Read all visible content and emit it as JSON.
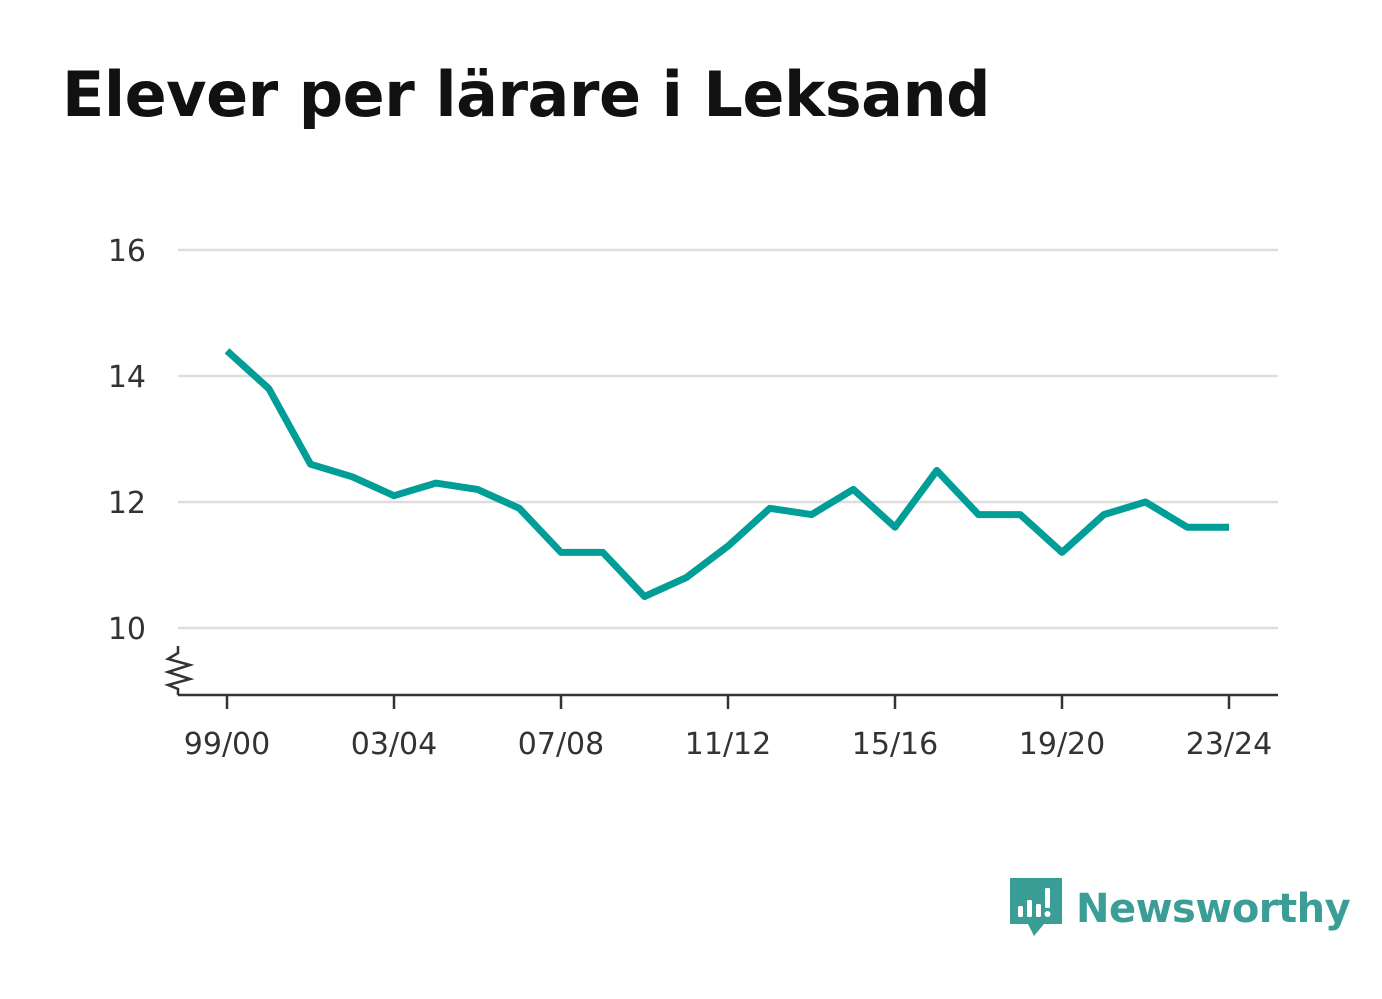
{
  "chart_data": {
    "type": "line",
    "title": "Elever per lärare i Leksand",
    "xlabel": "",
    "ylabel": "",
    "x": [
      "99/00",
      "00/01",
      "01/02",
      "02/03",
      "03/04",
      "04/05",
      "05/06",
      "06/07",
      "07/08",
      "08/09",
      "09/10",
      "10/11",
      "11/12",
      "12/13",
      "13/14",
      "14/15",
      "15/16",
      "16/17",
      "17/18",
      "18/19",
      "19/20",
      "20/21",
      "21/22",
      "22/23",
      "23/24"
    ],
    "x_tick_labels": [
      "99/00",
      "03/04",
      "07/08",
      "11/12",
      "15/16",
      "19/20",
      "23/24"
    ],
    "series": [
      {
        "values": [
          14.4,
          13.8,
          12.6,
          12.4,
          12.1,
          12.3,
          12.2,
          11.9,
          11.2,
          11.2,
          10.5,
          10.8,
          11.3,
          11.9,
          11.8,
          12.2,
          11.6,
          12.5,
          11.8,
          11.8,
          11.2,
          11.8,
          12.0,
          11.6,
          11.6
        ],
        "color": "#009e96"
      }
    ],
    "ylim": [
      9,
      16
    ],
    "y_ticks": [
      10,
      12,
      14,
      16
    ],
    "y_axis_break": true,
    "grid": true,
    "legend": "none"
  },
  "brand": {
    "name": "Newsworthy",
    "icon": "newsworthy-logo-icon",
    "color": "#3a9d96"
  }
}
